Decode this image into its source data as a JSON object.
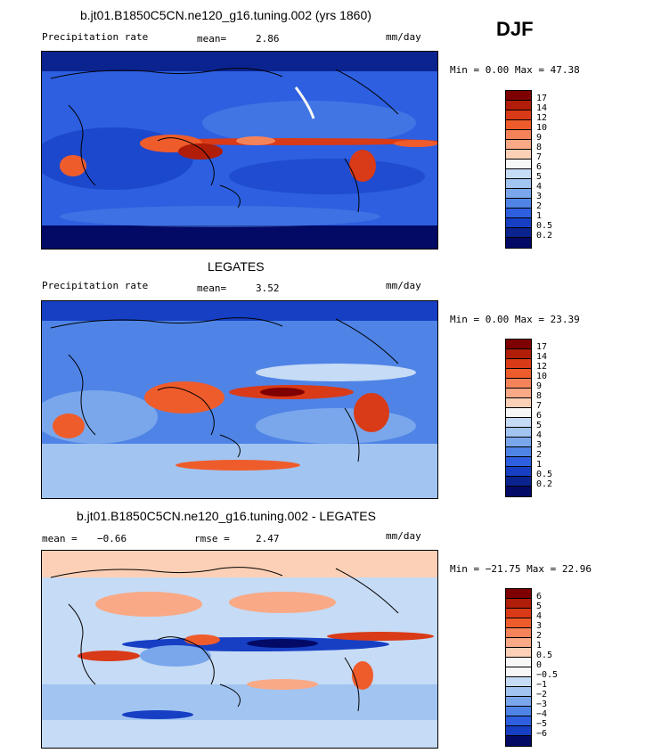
{
  "season": "DJF",
  "panels": [
    {
      "title": "b.jt01.B1850C5CN.ne120_g16.tuning.002 (yrs 1860)",
      "variable": "Precipitation rate",
      "stat1_label": "mean=",
      "stat1_value": "2.86",
      "stat2_label": "",
      "stat2_value": "",
      "units": "mm/day",
      "minmax": "Min =   0.00 Max =  47.38",
      "colorbar_labels": [
        "17",
        "14",
        "12",
        "10",
        "9",
        "8",
        "7",
        "6",
        "5",
        "4",
        "3",
        "2",
        "1",
        "0.5",
        "0.2"
      ]
    },
    {
      "title": "LEGATES",
      "variable": "Precipitation rate",
      "stat1_label": "mean=",
      "stat1_value": "3.52",
      "stat2_label": "",
      "stat2_value": "",
      "units": "mm/day",
      "minmax": "Min =   0.00 Max =  23.39",
      "colorbar_labels": [
        "17",
        "14",
        "12",
        "10",
        "9",
        "8",
        "7",
        "6",
        "5",
        "4",
        "3",
        "2",
        "1",
        "0.5",
        "0.2"
      ]
    },
    {
      "title": "b.jt01.B1850C5CN.ne120_g16.tuning.002 - LEGATES",
      "variable": "",
      "stat1_label": "mean =",
      "stat1_value": "−0.66",
      "stat2_label": "rmse =",
      "stat2_value": "2.47",
      "units": "mm/day",
      "minmax": "Min = −21.75 Max =  22.96",
      "colorbar_labels": [
        "6",
        "5",
        "4",
        "3",
        "2",
        "1",
        "0.5",
        "0",
        "−0.5",
        "−1",
        "−2",
        "−3",
        "−4",
        "−5",
        "−6"
      ]
    }
  ],
  "colors": {
    "abs_scale": [
      "#7f0000",
      "#b01d08",
      "#d93a17",
      "#ef5c2c",
      "#f5835a",
      "#f9a985",
      "#fcd0b6",
      "#f7f7f7",
      "#c6dbf5",
      "#a2c4f1",
      "#7aa7ec",
      "#4f84e6",
      "#2d5fe0",
      "#163fc4",
      "#0a238f",
      "#020a66"
    ],
    "diff_scale": [
      "#7f0000",
      "#b01d08",
      "#d93a17",
      "#ef5c2c",
      "#f5835a",
      "#f9a985",
      "#fcd0b6",
      "#f7f7f7",
      "#f7f7f7",
      "#c6dbf5",
      "#a2c4f1",
      "#7aa7ec",
      "#4f84e6",
      "#2d5fe0",
      "#163fc4",
      "#020a66"
    ]
  }
}
